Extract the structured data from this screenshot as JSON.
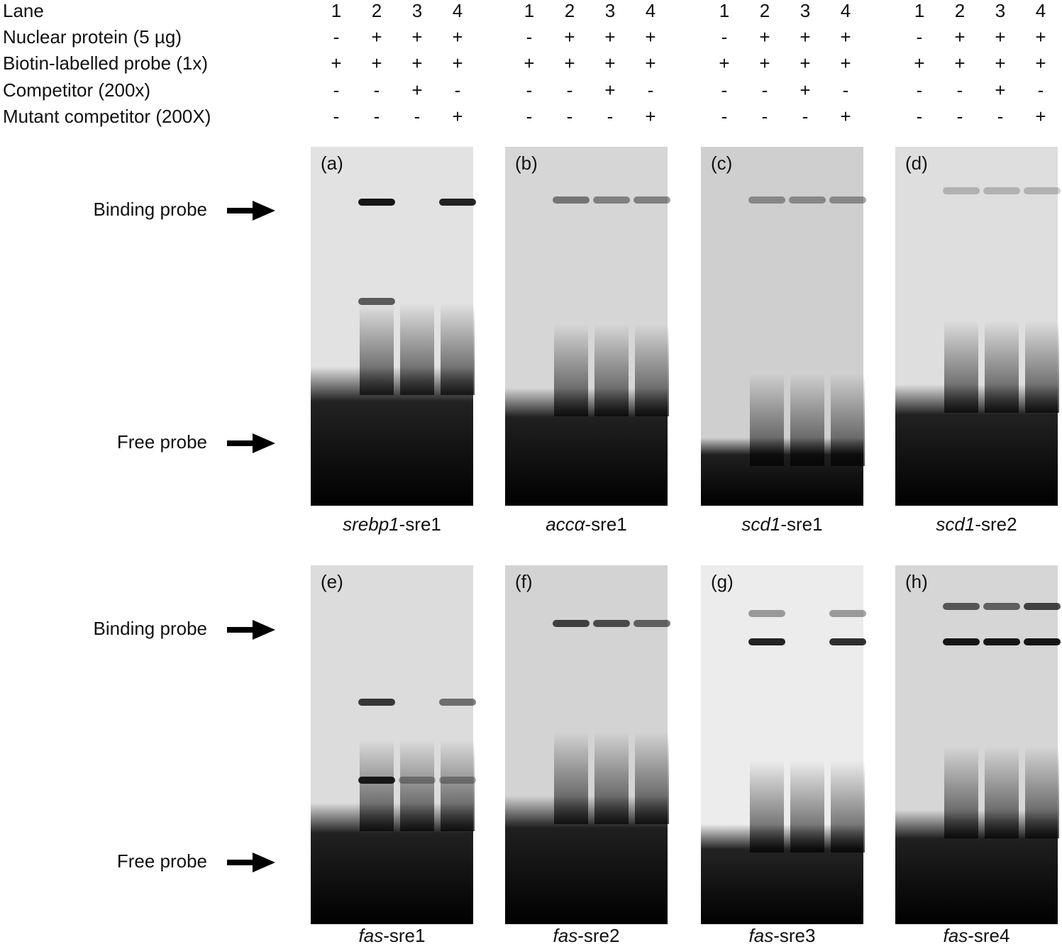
{
  "header": {
    "rows": [
      {
        "label": "Lane",
        "cells": [
          "1",
          "2",
          "3",
          "4"
        ]
      },
      {
        "label": "Nuclear protein (5 µg)",
        "cells": [
          "-",
          "+",
          "+",
          "+"
        ]
      },
      {
        "label": "Biotin-labelled probe (1x)",
        "cells": [
          "+",
          "+",
          "+",
          "+"
        ]
      },
      {
        "label": "Competitor (200x)",
        "cells": [
          "-",
          "-",
          "+",
          "-"
        ]
      },
      {
        "label": "Mutant competitor (200X)",
        "cells": [
          "-",
          "-",
          "-",
          "+"
        ]
      }
    ]
  },
  "arrows": {
    "binding": "Binding probe",
    "free": "Free probe"
  },
  "panels": [
    {
      "letter": "(a)",
      "gene": "srebp1",
      "suffix": "-sre1"
    },
    {
      "letter": "(b)",
      "gene": "accα",
      "suffix": "-sre1"
    },
    {
      "letter": "(c)",
      "gene": "scd1",
      "suffix": "-sre1"
    },
    {
      "letter": "(d)",
      "gene": "scd1",
      "suffix": "-sre2"
    },
    {
      "letter": "(e)",
      "gene": "fas",
      "suffix": "-sre1"
    },
    {
      "letter": "(f)",
      "gene": "fas",
      "suffix": "-sre2"
    },
    {
      "letter": "(g)",
      "gene": "fas",
      "suffix": "-sre3"
    },
    {
      "letter": "(h)",
      "gene": "fas",
      "suffix": "-sre4"
    }
  ]
}
